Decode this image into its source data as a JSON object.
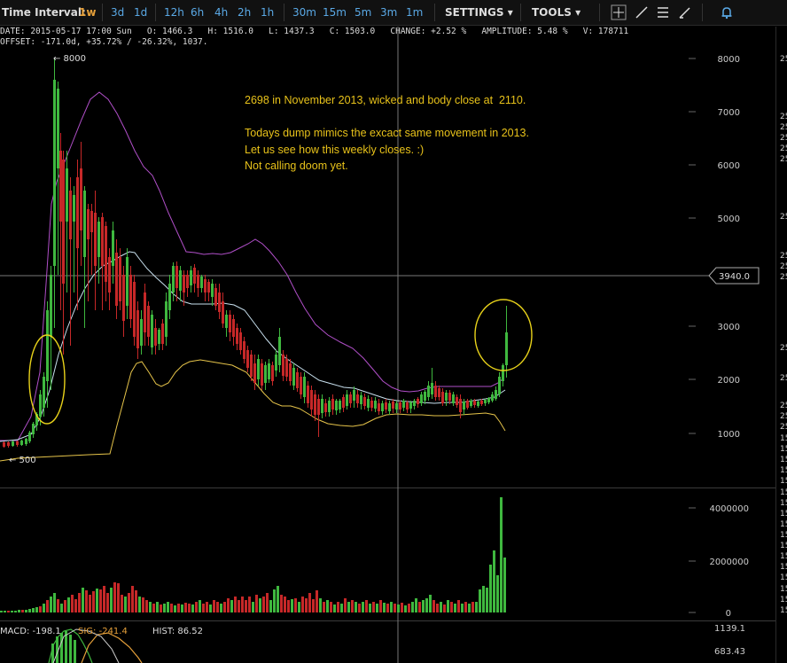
{
  "toolbar": {
    "time_interval_label": "Time Interval:",
    "intervals": [
      "1w",
      "3d",
      "1d",
      "12h",
      "6h",
      "4h",
      "2h",
      "1h",
      "30m",
      "15m",
      "5m",
      "3m",
      "1m"
    ],
    "active_interval": "1w",
    "settings_label": "SETTINGS",
    "tools_label": "TOOLS",
    "icons": [
      "crosshair-icon",
      "line-tool-icon",
      "fib-tool-icon",
      "brush-icon",
      "alert-bell-icon"
    ]
  },
  "info_bar": {
    "line1": "DATE: 2015-05-17 17:00 Sun   O: 1466.3   H: 1516.0   L: 1437.3   C: 1503.0   CHANGE: +2.52 %   AMPLITUDE: 5.48 %   V: 178711",
    "line2": "OFFSET: -171.0d, +35.72% / -26.32%, 1037."
  },
  "annotation": {
    "lines": [
      "2698 in November 2013, wicked and body close at  2110.",
      "",
      "Todays dump mimics the excact same movement in 2013.",
      "Let us see how this weekly closes. :)",
      "Not calling doom yet."
    ],
    "color": "#e8c21a"
  },
  "price_axis": {
    "ticks": [
      "8000",
      "7000",
      "6000",
      "5000",
      "3000",
      "2000",
      "1000"
    ],
    "crosshair_value": "3940.0"
  },
  "volume_axis": {
    "ticks": [
      "4000000",
      "2000000",
      "0"
    ]
  },
  "macd_axis": {
    "ticks": [
      "1139.1",
      "683.43"
    ]
  },
  "markers": {
    "high": "← 8000",
    "low": "← 500"
  },
  "macd_bar": {
    "macd_label": "MACD: -198.1",
    "sig_label": "SIG: -241.4",
    "hist_label": "HIST: 86.52"
  },
  "right_edge_labels": [
    "25",
    "25",
    "25",
    "25",
    "25",
    "25",
    "25",
    "25",
    "25",
    "25",
    "25",
    "25",
    "25",
    "25",
    "25",
    "15",
    "15",
    "15",
    "15",
    "15",
    "15",
    "15",
    "15",
    "15",
    "15",
    "15",
    "15",
    "15",
    "15",
    "15",
    "15",
    "15"
  ],
  "colors": {
    "up": "#3fb83f",
    "down": "#c62828",
    "bb_upper": "#b04fc8",
    "bb_mid": "#c8e0ee",
    "bb_lower": "#e6c44a",
    "crosshair": "#888888"
  }
}
